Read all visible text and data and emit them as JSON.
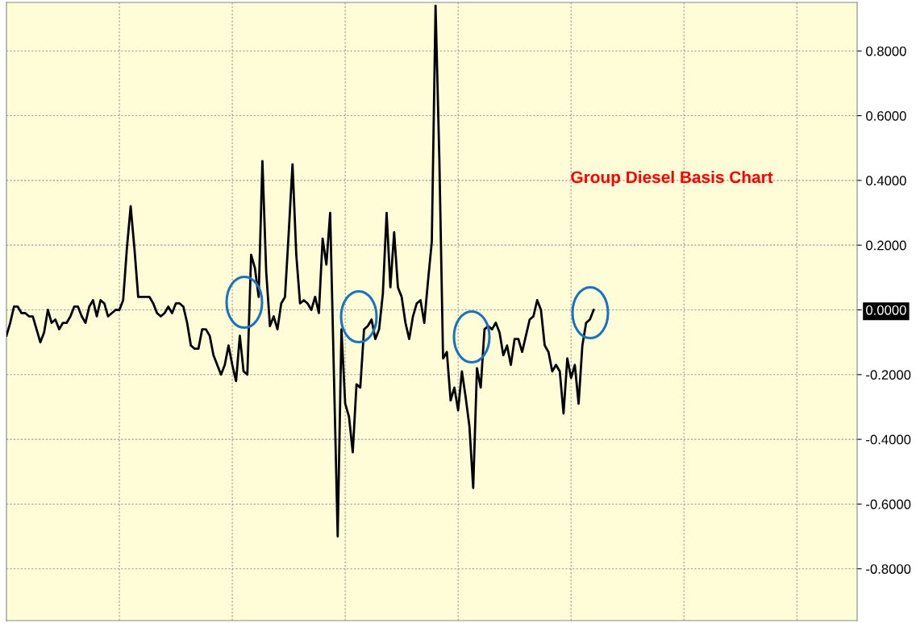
{
  "chart_data": {
    "type": "line",
    "title": "Group Diesel Basis Chart",
    "categories": [
      null,
      null,
      null,
      null,
      null,
      null,
      null,
      null,
      null,
      null,
      null,
      null,
      null,
      null,
      null,
      null,
      null,
      null,
      null,
      null,
      null,
      null,
      null,
      null,
      null,
      null,
      null,
      null,
      null,
      null,
      null,
      null,
      null,
      null,
      null,
      null,
      null,
      null,
      null,
      null,
      null,
      null,
      null,
      null,
      null,
      null,
      null,
      null,
      null,
      null,
      null,
      null,
      null,
      null,
      null,
      null,
      null,
      null,
      null,
      null,
      null,
      null,
      null,
      null,
      null,
      null,
      null,
      null,
      null,
      null,
      null,
      null,
      null,
      null,
      null,
      null,
      null,
      null,
      null,
      null,
      null,
      null,
      null,
      null,
      null,
      null,
      null,
      null,
      null,
      null,
      null,
      null,
      null,
      null,
      null,
      null,
      null,
      null,
      null,
      null,
      null,
      null,
      null,
      null,
      null,
      null,
      null,
      null,
      null,
      null,
      null,
      null,
      null,
      null,
      null,
      null,
      null,
      null,
      null,
      null,
      null,
      null,
      null,
      null,
      null,
      null,
      null,
      null,
      null,
      null,
      null,
      null,
      null,
      null,
      null,
      null,
      null,
      null,
      null,
      null,
      null,
      null,
      null,
      null,
      null,
      null,
      null,
      null,
      null,
      null,
      null,
      null,
      null,
      null,
      null,
      null,
      null,
      null,
      null,
      null,
      null,
      null,
      null,
      null,
      null,
      null,
      null,
      null,
      null,
      null,
      null,
      null,
      null,
      null,
      null,
      null,
      null,
      null,
      null,
      null,
      null,
      null,
      null,
      null,
      null,
      null,
      null,
      null,
      null,
      null,
      null,
      null,
      null,
      null,
      null,
      null,
      null,
      null,
      null,
      null,
      null,
      null,
      null,
      null,
      null,
      null,
      null,
      null,
      null,
      null,
      null,
      null,
      null,
      null,
      null,
      null,
      null,
      null,
      null,
      null,
      null,
      null,
      null,
      null,
      null,
      null,
      null
    ],
    "series": [
      {
        "color": "#000000",
        "values": [
          -0.08,
          -0.04,
          0.01,
          0.01,
          -0.01,
          -0.01,
          -0.02,
          -0.02,
          -0.06,
          -0.1,
          -0.07,
          0.0,
          -0.04,
          -0.03,
          -0.06,
          -0.04,
          -0.04,
          -0.02,
          0.01,
          0.01,
          -0.02,
          -0.04,
          0.01,
          0.03,
          -0.02,
          0.03,
          0.02,
          -0.02,
          -0.01,
          0.0,
          0.0,
          0.03,
          0.19,
          0.32,
          0.19,
          0.04,
          0.04,
          0.04,
          0.04,
          0.02,
          -0.01,
          -0.02,
          -0.01,
          0.01,
          -0.01,
          0.02,
          0.02,
          0.01,
          -0.04,
          -0.11,
          -0.12,
          -0.12,
          -0.06,
          -0.06,
          -0.08,
          -0.14,
          -0.17,
          -0.2,
          -0.17,
          -0.11,
          -0.17,
          -0.22,
          -0.08,
          -0.19,
          -0.2,
          0.17,
          0.13,
          0.04,
          0.46,
          0.12,
          -0.05,
          -0.02,
          -0.06,
          0.02,
          0.04,
          0.24,
          0.45,
          0.17,
          0.02,
          0.03,
          0.02,
          0.0,
          0.04,
          -0.01,
          0.22,
          0.14,
          0.3,
          -0.2,
          -0.7,
          -0.06,
          -0.29,
          -0.33,
          -0.44,
          -0.23,
          -0.24,
          -0.06,
          -0.05,
          -0.03,
          -0.09,
          -0.06,
          0.05,
          0.3,
          0.07,
          0.24,
          0.07,
          0.04,
          -0.04,
          -0.09,
          -0.02,
          0.02,
          0.03,
          -0.04,
          0.09,
          0.21,
          0.94,
          0.47,
          -0.15,
          -0.13,
          -0.28,
          -0.24,
          -0.31,
          -0.19,
          -0.27,
          -0.36,
          -0.55,
          -0.18,
          -0.24,
          -0.06,
          -0.05,
          -0.06,
          -0.04,
          -0.07,
          -0.14,
          -0.11,
          -0.17,
          -0.09,
          -0.09,
          -0.13,
          -0.08,
          -0.03,
          -0.02,
          0.03,
          0.0,
          -0.11,
          -0.13,
          -0.19,
          -0.17,
          -0.19,
          -0.32,
          -0.15,
          -0.21,
          -0.17,
          -0.29,
          -0.11,
          -0.04,
          -0.03,
          0.0,
          null,
          null,
          null,
          null,
          null,
          null,
          null,
          null,
          null,
          null,
          null,
          null,
          null,
          null,
          null,
          null,
          null,
          null,
          null,
          null,
          null,
          null,
          null,
          null,
          null,
          null,
          null,
          null,
          null,
          null,
          null,
          null,
          null,
          null,
          null,
          null,
          null,
          null,
          null,
          null,
          null,
          null,
          null,
          null,
          null,
          null,
          null,
          null,
          null,
          null,
          null,
          null,
          null,
          null,
          null,
          null,
          null,
          null,
          null,
          null,
          null,
          null,
          null,
          null,
          null,
          null,
          null,
          null,
          null,
          null
        ]
      }
    ],
    "ylim": [
      -0.96,
      0.95
    ],
    "yticks": [
      {
        "value": -0.8,
        "label": "-0.8000"
      },
      {
        "value": -0.6,
        "label": "-0.6000"
      },
      {
        "value": -0.4,
        "label": "-0.4000"
      },
      {
        "value": -0.2,
        "label": "-0.2000"
      },
      {
        "value": 0,
        "label": "0.0000"
      },
      {
        "value": 0.2,
        "label": "0.2000"
      },
      {
        "value": 0.4,
        "label": "0.4000"
      },
      {
        "value": 0.6,
        "label": "0.6000"
      },
      {
        "value": 0.8,
        "label": "0.8000"
      }
    ],
    "grid": true,
    "line_style": "solid",
    "marker": "none"
  }
}
